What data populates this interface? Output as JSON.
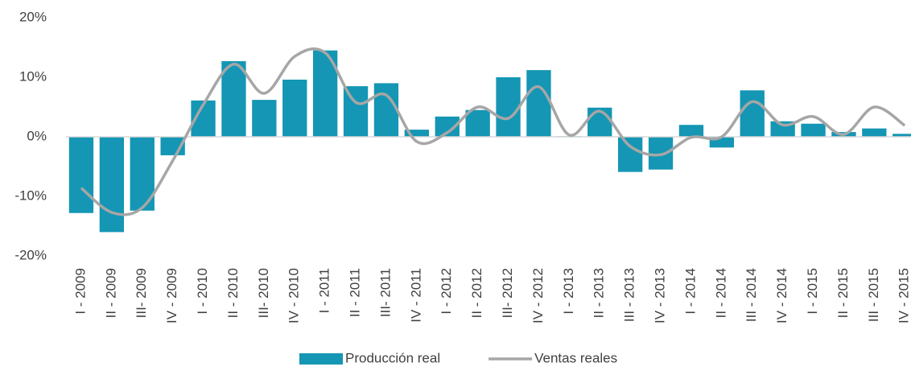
{
  "chart_data": {
    "type": "bar_line",
    "categories": [
      "I - 2009",
      "II - 2009",
      "III- 2009",
      "IV - 2009",
      "I - 2010",
      "II - 2010",
      "III- 2010",
      "IV - 2010",
      "I - 2011",
      "II - 2011",
      "III- 2011",
      "IV - 2011",
      "I - 2012",
      "II - 2012",
      "III- 2012",
      "IV - 2012",
      "I - 2013",
      "II - 2013",
      "III - 2013",
      "IV - 2013",
      "I - 2014",
      "II - 2014",
      "III - 2014",
      "IV - 2014",
      "I - 2015",
      "II - 2015",
      "III - 2015",
      "IV - 2015"
    ],
    "series": [
      {
        "name": "Producción real",
        "type": "bar",
        "color": "#1496b4",
        "values": [
          -12.8,
          -16.0,
          -12.4,
          -3.1,
          6.1,
          12.7,
          6.2,
          9.6,
          14.5,
          8.5,
          9.0,
          1.2,
          3.4,
          4.5,
          10.0,
          11.2,
          0.1,
          4.9,
          -5.9,
          -5.5,
          2.0,
          -1.8,
          7.8,
          2.6,
          2.2,
          0.8,
          1.4,
          0.5
        ]
      },
      {
        "name": "Ventas reales",
        "type": "line",
        "color": "#a6a6a6",
        "values": [
          -8.6,
          -12.7,
          -11.9,
          -4.0,
          5.4,
          12.2,
          7.3,
          13.5,
          14.1,
          5.8,
          7.0,
          -0.8,
          0.7,
          5.0,
          3.1,
          8.4,
          0.3,
          4.3,
          -1.6,
          -3.0,
          -0.1,
          0,
          5.9,
          2.0,
          3.4,
          0.4,
          5.0,
          1.9
        ]
      }
    ],
    "ylim": [
      -20,
      20
    ],
    "yticks": [
      {
        "value": -20,
        "label": "-20%"
      },
      {
        "value": -10,
        "label": "-10%"
      },
      {
        "value": 0,
        "label": "0%"
      },
      {
        "value": 10,
        "label": "10%"
      },
      {
        "value": 20,
        "label": "20%"
      }
    ],
    "grid": false,
    "legend": "bottom"
  }
}
